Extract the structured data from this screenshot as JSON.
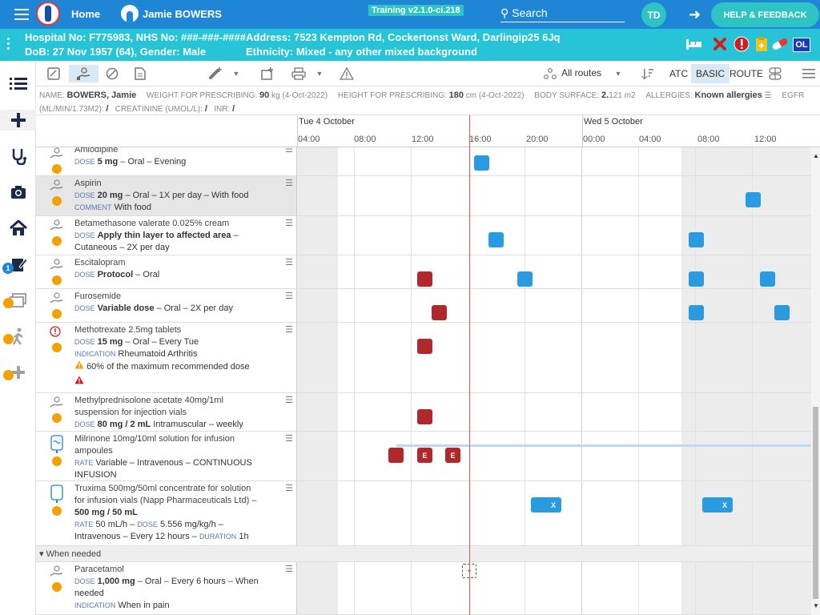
{
  "topbar": {
    "home_label": "Home",
    "patient_name": "Jamie BOWERS",
    "training_label": "Training v2.1.0-ci.218",
    "search_label": "Search",
    "user_initials": "TD",
    "help_label": "HELP & FEEDBACK"
  },
  "banner": {
    "line1_left": "Hospital No: F775983, NHS No: ###-###-####",
    "line2_left": "DoB: 27 Nov 1957 (64), Gender: Male",
    "line1_right": "Address: 7523 Kempton Rd, Cockertonst Ward, Darlingip25 6Jq",
    "line2_right": "Ethnicity: Mixed - any other mixed background",
    "icons": [
      "bed-icon",
      "red-x-icon",
      "alert-icon",
      "clipboard-icon",
      "pill-icon"
    ],
    "ol_label": "OL"
  },
  "toolbar": {
    "routes_label": "All routes",
    "atc_label": "ATC",
    "basic_label": "BASIC",
    "route_label": "ROUTE"
  },
  "info": {
    "name_key": "NAME:",
    "name_val": "BOWERS, Jamie",
    "weight_key": "WEIGHT FOR PRESCRIBING:",
    "weight_val": "90",
    "weight_unit": "kg (4-Oct-2022)",
    "height_key": "HEIGHT FOR PRESCRIBING:",
    "height_val": "180",
    "height_unit": "cm (4-Oct-2022)",
    "bsa_key": "BODY SURFACE:",
    "bsa_val": "2.",
    "bsa_unit": "121 m2",
    "allergies_key": "ALLERGIES:",
    "allergies_val": "Known allergies",
    "egfr_key": "EGFR",
    "egfr_unit": "(ML/MIN/1.73M2):",
    "egfr_val": "/",
    "creat_key": "CREATININE (UMOL/L):",
    "creat_val": "/",
    "inr_key": "INR:",
    "inr_val": "/"
  },
  "timeline": {
    "day1": "Tue 4 October",
    "day2": "Wed 5 October",
    "hours": [
      "04:00",
      "08:00",
      "12:00",
      "16:00",
      "20:00",
      "00:00",
      "04:00",
      "08:00",
      "12:00"
    ]
  },
  "rows": [
    {
      "name": "Amlodipine",
      "dose_key": "DOSE",
      "dose": "5 mg",
      "detail": " – Oral – Evening"
    },
    {
      "name": "Aspirin",
      "dose_key": "DOSE",
      "dose": "20 mg",
      "detail": " – Oral – 1X per day – With food",
      "comment_key": "COMMENT",
      "comment": "With food"
    },
    {
      "name": "Betamethasone valerate 0.025% cream",
      "dose_key": "DOSE",
      "dose": "Apply thin layer to affected area",
      "detail": " – ",
      "line3": "Cutaneous – 2X per day"
    },
    {
      "name": "Escitalopram",
      "dose_key": "DOSE",
      "dose": "Protocol",
      "detail": " – Oral"
    },
    {
      "name": "Furosemide",
      "dose_key": "DOSE",
      "dose": "Variable dose",
      "detail": " – Oral – 2X per day"
    },
    {
      "name": "Methotrexate 2.5mg tablets",
      "dose_key": "DOSE",
      "dose": "15 mg",
      "detail": " – Oral – Every Tue",
      "ind_key": "INDICATION",
      "indication": "Rheumatoid Arthritis",
      "warning": "60% of the maximum recommended dose"
    },
    {
      "name": "Methylprednisolone acetate 40mg/1ml",
      "name2": "suspension for injection vials",
      "dose_key": "DOSE",
      "dose": "80 mg / 2 mL",
      "detail": " Intramuscular – weekly"
    },
    {
      "name": "Milrinone 10mg/10ml solution for infusion",
      "name2": "ampoules",
      "rate_key": "RATE",
      "rate": "Variable – Intravenous – CONTINUOUS",
      "line4": "INFUSION"
    },
    {
      "name": "Truxima 500mg/50ml concentrate for solution",
      "name2": "for infusion vials (Napp Pharmaceuticals Ltd) –",
      "bold3": "500 mg / 50 mL",
      "rate_key": "RATE",
      "rate": "50 mL/h – ",
      "dose_key": "DOSE",
      "dose": "5.556 mg/kg/h –",
      "line5": "Intravenous – Every 12 hours – ",
      "dur_key": "DURATION",
      "dur": "1h"
    },
    {
      "name": "Paracetamol",
      "dose_key": "DOSE",
      "dose": "1,000 mg",
      "detail": " – Oral – Every 6 hours – When",
      "line3": "needed",
      "ind_key": "INDICATION",
      "indication": "When in pain"
    }
  ],
  "group_label": "When needed",
  "dose_labels": {
    "e": "E",
    "x": "X",
    "plus": "+"
  }
}
